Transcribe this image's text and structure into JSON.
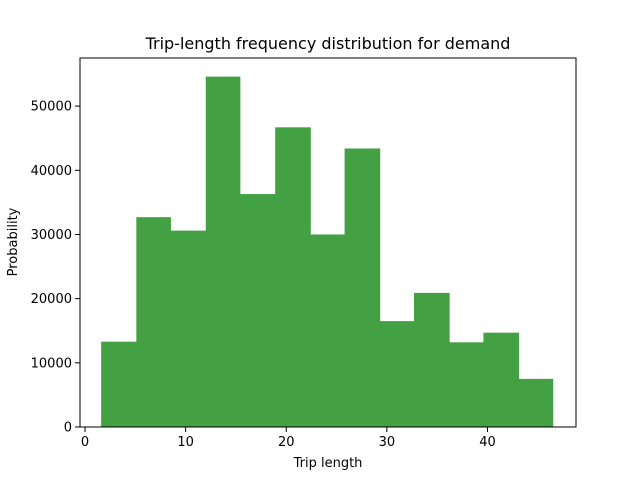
{
  "chart_data": {
    "type": "bar",
    "title": "Trip-length frequency distribution for demand",
    "xlabel": "Trip length",
    "ylabel": "Probability",
    "xlim": [
      -0.5,
      48.8
    ],
    "ylim": [
      0,
      57500
    ],
    "xticks": [
      0,
      10,
      20,
      30,
      40
    ],
    "yticks": [
      0,
      10000,
      20000,
      30000,
      40000,
      50000
    ],
    "bar_color": "#43a143",
    "grid": false,
    "bins": [
      {
        "x0": 1.6,
        "x1": 5.1,
        "value": 13300
      },
      {
        "x0": 5.1,
        "x1": 8.5,
        "value": 32700
      },
      {
        "x0": 8.5,
        "x1": 12.0,
        "value": 30600
      },
      {
        "x0": 12.0,
        "x1": 15.4,
        "value": 54600
      },
      {
        "x0": 15.4,
        "x1": 18.9,
        "value": 36300
      },
      {
        "x0": 18.9,
        "x1": 22.4,
        "value": 46700
      },
      {
        "x0": 22.4,
        "x1": 25.8,
        "value": 30000
      },
      {
        "x0": 25.8,
        "x1": 29.3,
        "value": 43400
      },
      {
        "x0": 29.3,
        "x1": 32.7,
        "value": 16500
      },
      {
        "x0": 32.7,
        "x1": 36.2,
        "value": 20900
      },
      {
        "x0": 36.2,
        "x1": 39.6,
        "value": 13200
      },
      {
        "x0": 39.6,
        "x1": 43.1,
        "value": 14700
      },
      {
        "x0": 43.1,
        "x1": 46.5,
        "value": 7500
      }
    ]
  }
}
